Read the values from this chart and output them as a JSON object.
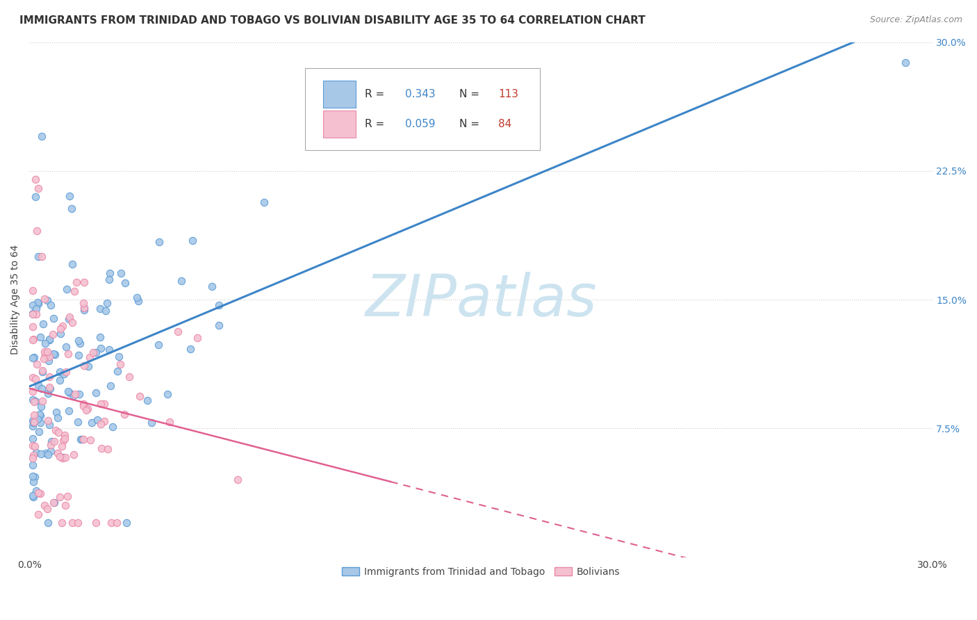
{
  "title": "IMMIGRANTS FROM TRINIDAD AND TOBAGO VS BOLIVIAN DISABILITY AGE 35 TO 64 CORRELATION CHART",
  "source": "Source: ZipAtlas.com",
  "ylabel": "Disability Age 35 to 64",
  "xlim": [
    0.0,
    0.3
  ],
  "ylim": [
    0.0,
    0.3
  ],
  "xtick_positions": [
    0.0,
    0.05,
    0.1,
    0.15,
    0.2,
    0.25,
    0.3
  ],
  "xtick_labels": [
    "0.0%",
    "",
    "",
    "",
    "",
    "",
    "30.0%"
  ],
  "ytick_positions": [
    0.075,
    0.15,
    0.225,
    0.3
  ],
  "ytick_labels": [
    "7.5%",
    "15.0%",
    "22.5%",
    "30.0%"
  ],
  "watermark": "ZIPatlas",
  "series1": {
    "name": "Immigrants from Trinidad and Tobago",
    "R": 0.343,
    "N": 113,
    "line_color": "#3d85c8",
    "fill_color": "#a8c8e8",
    "edge_color": "#5b9bd5"
  },
  "series2": {
    "name": "Bolivians",
    "R": 0.059,
    "N": 84,
    "line_color": "#e06090",
    "fill_color": "#f5c0d0",
    "edge_color": "#e888a8"
  },
  "legend_R_color": "#3d85c8",
  "legend_N_color": "#c0392b",
  "background_color": "#ffffff",
  "grid_color": "#cccccc",
  "title_fontsize": 11,
  "ylabel_fontsize": 10,
  "tick_fontsize": 10,
  "source_fontsize": 9,
  "watermark_color": "#cde4f0",
  "watermark_fontsize": 60
}
